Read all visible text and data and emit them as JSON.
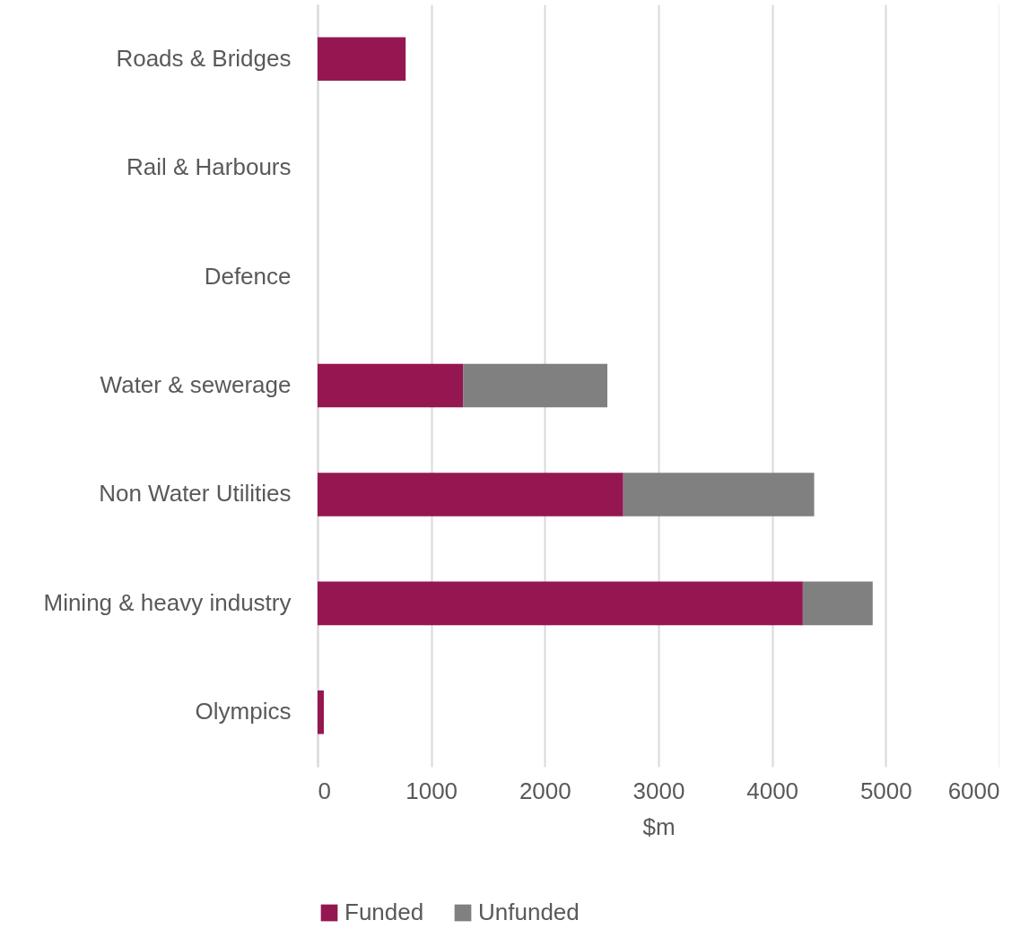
{
  "chart_data": {
    "type": "bar",
    "orientation": "horizontal",
    "stacked": true,
    "xlabel": "$m",
    "categories": [
      "Roads & Bridges",
      "Rail & Harbours",
      "Defence",
      "Water & sewerage",
      "Non Water Utilities",
      "Mining & heavy industry",
      "Olympics"
    ],
    "series": [
      {
        "name": "Funded",
        "color": "#951751",
        "values": [
          775,
          null,
          null,
          1280,
          2690,
          4270,
          55
        ]
      },
      {
        "name": "Unfunded",
        "color": "#808080",
        "values": [
          null,
          null,
          null,
          1270,
          1680,
          615,
          null
        ]
      }
    ],
    "xlim": [
      0,
      6000
    ],
    "xticks": [
      0,
      1000,
      2000,
      3000,
      4000,
      5000,
      6000
    ],
    "grid": "x",
    "legend": "bottom"
  }
}
